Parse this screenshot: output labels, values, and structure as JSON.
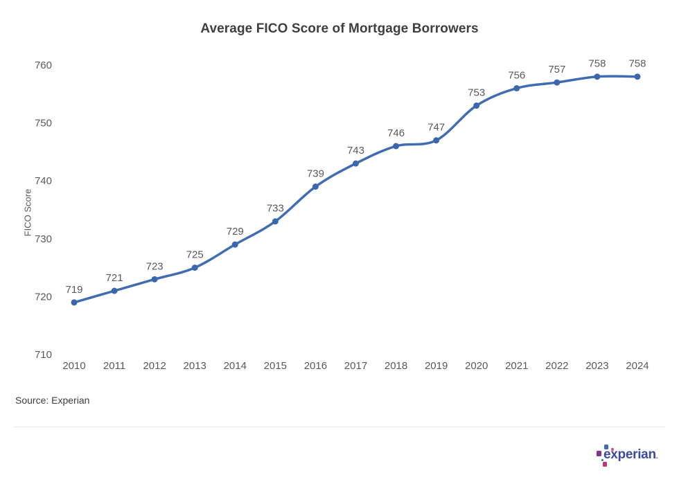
{
  "header": {
    "title": "Average FICO Score of Mortgage Borrowers"
  },
  "source": {
    "text": "Source: Experian"
  },
  "logo": {
    "name": "experian-logo",
    "text": "experian",
    "tm": ".",
    "wordmark_color": "#3b4aa0",
    "square_colors": [
      "#3c6db5",
      "#d74ea0",
      "#82368c",
      "#c13572"
    ]
  },
  "colors": {
    "line": "#3f6cb3",
    "marker": "#3a67ae",
    "axis_text": "#595959",
    "data_label": "#595959",
    "title_text": "#3f3f3f",
    "divider": "#e8e8e8"
  },
  "chart_data": {
    "type": "line",
    "title": "Average FICO Score of Mortgage Borrowers",
    "xlabel": "",
    "ylabel": "FICO Score",
    "categories": [
      "2010",
      "2011",
      "2012",
      "2013",
      "2014",
      "2015",
      "2016",
      "2017",
      "2018",
      "2019",
      "2020",
      "2021",
      "2022",
      "2023",
      "2024"
    ],
    "values": [
      719,
      721,
      723,
      725,
      729,
      733,
      739,
      743,
      746,
      747,
      753,
      756,
      757,
      758,
      758
    ],
    "point_labels": [
      "719",
      "721",
      "723",
      "725",
      "729",
      "733",
      "739",
      "743",
      "746",
      "747",
      "753",
      "756",
      "757",
      "758",
      "758"
    ],
    "yticks": [
      710,
      720,
      730,
      740,
      750,
      760
    ],
    "ylim": [
      710,
      760
    ],
    "grid": false,
    "legend": "none",
    "line_smoothing": true
  }
}
